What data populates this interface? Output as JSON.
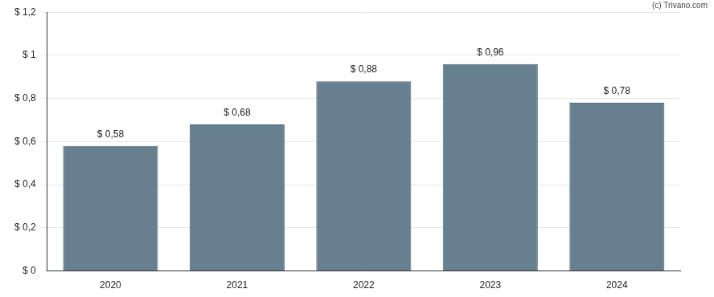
{
  "chart_data": {
    "type": "bar",
    "categories": [
      "2020",
      "2021",
      "2022",
      "2023",
      "2024"
    ],
    "values": [
      0.58,
      0.68,
      0.88,
      0.96,
      0.78
    ],
    "value_labels": [
      "$ 0,58",
      "$ 0,68",
      "$ 0,88",
      "$ 0,96",
      "$ 0,78"
    ],
    "data_labels": true,
    "color": "#66808f",
    "ylim": [
      0,
      1.2
    ],
    "yticks": [
      {
        "value": 0,
        "label": "$ 0"
      },
      {
        "value": 0.2,
        "label": "$ 0,2"
      },
      {
        "value": 0.4,
        "label": "$ 0,4"
      },
      {
        "value": 0.6,
        "label": "$ 0,6"
      },
      {
        "value": 0.8,
        "label": "$ 0,8"
      },
      {
        "value": 1,
        "label": "$ 1"
      },
      {
        "value": 1.2,
        "label": "$ 1,2"
      }
    ],
    "grid": true,
    "annotations": [
      "(c) Trivano.com"
    ]
  }
}
